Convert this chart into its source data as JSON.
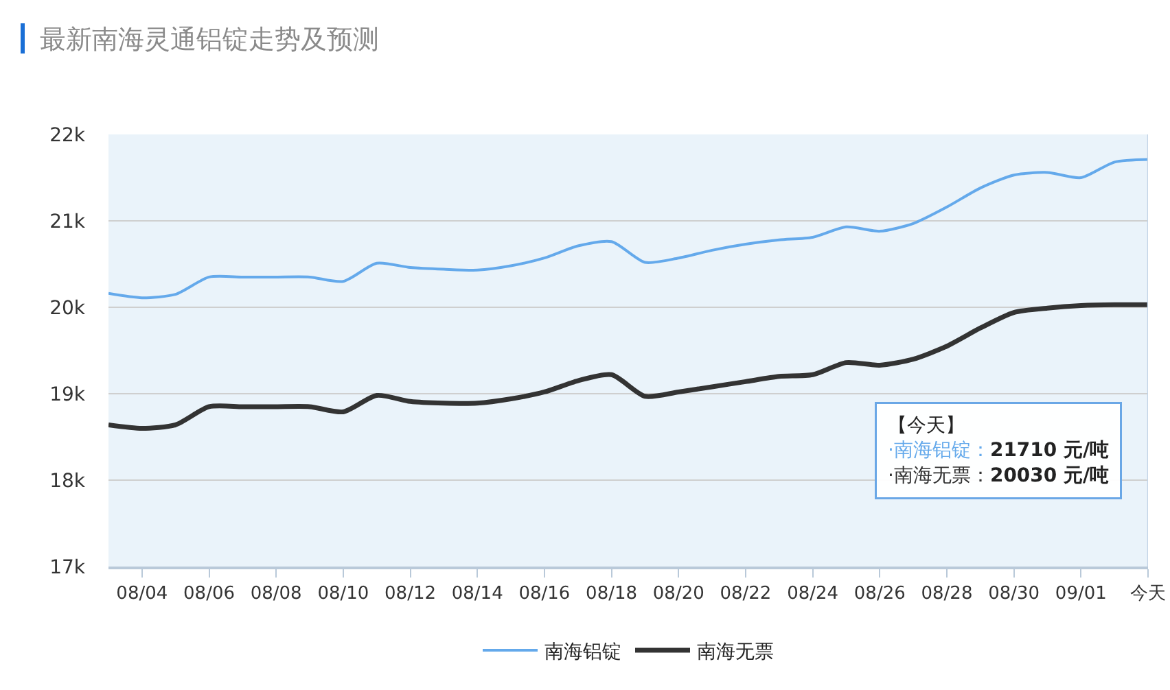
{
  "chart_data": {
    "type": "line",
    "title": "最新南海灵通铝锭走势及预测",
    "x": [
      "--08-03",
      "--08-04",
      "--08-05",
      "--08-06",
      "--08-07",
      "--08-08",
      "--08-09",
      "--08-10",
      "--08-11",
      "--08-12",
      "--08-13",
      "--08-14",
      "--08-15",
      "--08-16",
      "--08-17",
      "--08-18",
      "--08-19",
      "--08-20",
      "--08-21",
      "--08-22",
      "--08-23",
      "--08-24",
      "--08-25",
      "--08-26",
      "--08-27",
      "--08-28",
      "--08-29",
      "--08-30",
      "--08-31",
      "--09-01",
      "--09-02",
      "--09-03"
    ],
    "series": [
      {
        "name": "南海铝锭",
        "color": "#64a9eb",
        "values": [
          20160,
          20110,
          20150,
          20350,
          20350,
          20350,
          20350,
          20300,
          20510,
          20460,
          20440,
          20430,
          20480,
          20570,
          20710,
          20760,
          20520,
          20570,
          20660,
          20730,
          20780,
          20810,
          20930,
          20880,
          20970,
          21160,
          21380,
          21530,
          21560,
          21500,
          21680,
          21710
        ]
      },
      {
        "name": "南海无票",
        "color": "#333333",
        "values": [
          18640,
          18600,
          18640,
          18850,
          18850,
          18850,
          18850,
          18790,
          18980,
          18910,
          18890,
          18890,
          18940,
          19020,
          19150,
          19220,
          18970,
          19020,
          19080,
          19140,
          19200,
          19220,
          19360,
          19330,
          19400,
          19550,
          19760,
          19940,
          19990,
          20020,
          20030,
          20030
        ]
      }
    ],
    "xlim": [
      "--08-03",
      "--09-03"
    ],
    "xticks": [
      {
        "value": "--08-04",
        "label": "08/04"
      },
      {
        "value": "--08-06",
        "label": "08/06"
      },
      {
        "value": "--08-08",
        "label": "08/08"
      },
      {
        "value": "--08-10",
        "label": "08/10"
      },
      {
        "value": "--08-12",
        "label": "08/12"
      },
      {
        "value": "--08-14",
        "label": "08/14"
      },
      {
        "value": "--08-16",
        "label": "08/16"
      },
      {
        "value": "--08-18",
        "label": "08/18"
      },
      {
        "value": "--08-20",
        "label": "08/20"
      },
      {
        "value": "--08-22",
        "label": "08/22"
      },
      {
        "value": "--08-24",
        "label": "08/24"
      },
      {
        "value": "--08-26",
        "label": "08/26"
      },
      {
        "value": "--08-28",
        "label": "08/28"
      },
      {
        "value": "--08-30",
        "label": "08/30"
      },
      {
        "value": "--09-01",
        "label": "09/01"
      },
      {
        "value": "--09-03",
        "label": "今天"
      }
    ],
    "ylim": [
      17000,
      22000
    ],
    "yticks": [
      {
        "value": 17000,
        "label": "17k"
      },
      {
        "value": 18000,
        "label": "18k"
      },
      {
        "value": 19000,
        "label": "19k"
      },
      {
        "value": 20000,
        "label": "20k"
      },
      {
        "value": 21000,
        "label": "21k"
      },
      {
        "value": 22000,
        "label": "22k"
      }
    ],
    "grid": "y",
    "legend": "bottom",
    "ref_lines": [
      {
        "axis": "x",
        "value": "--09-03",
        "color": "#c3d4e5"
      }
    ],
    "annotations": [
      "【今天】\n·南海铝锭：21710 元/吨\n·南海无票：20030 元/吨"
    ]
  }
}
